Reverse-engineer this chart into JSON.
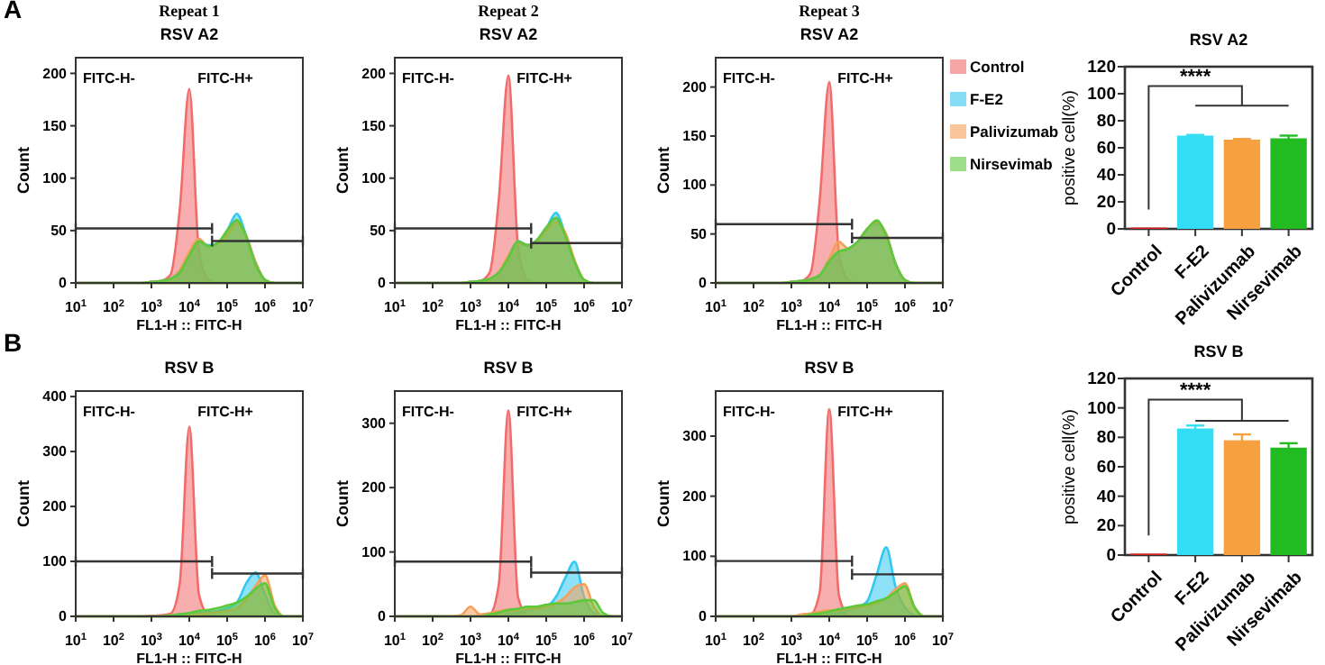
{
  "chart_data": [
    {
      "type": "area",
      "title": "Repeat 1",
      "subtitle": "RSV A2",
      "xlabel": "FL1-H :: FITC-H",
      "ylabel": "Count",
      "annotations": [
        "A",
        "FITC-H-",
        "FITC-H+"
      ],
      "log": "x",
      "xlim": [
        10,
        10000000
      ],
      "xticks": [
        {
          "value": 10,
          "label": "10$^{1}$"
        },
        {
          "value": 100,
          "label": "10$^{2}$"
        },
        {
          "value": 1000,
          "label": "10$^{3}$"
        },
        {
          "value": 10000,
          "label": "10$^{4}$"
        },
        {
          "value": 100000,
          "label": "10$^{5}$"
        },
        {
          "value": 1000000,
          "label": "10$^{6}$"
        },
        {
          "value": 10000000,
          "label": "10$^{7}$"
        }
      ],
      "ylim": [
        0,
        215
      ],
      "yticks": [
        0,
        50,
        100,
        150,
        200
      ],
      "x": [
        10,
        18,
        32,
        56,
        100,
        180,
        320,
        560,
        1000,
        1800,
        3200,
        5600,
        10000,
        18000,
        32000,
        56000,
        100000,
        180000,
        320000,
        560000,
        1000000,
        1800000,
        3200000,
        5600000,
        10000000
      ],
      "series": [
        {
          "color": "#f26b6b",
          "values": [
            0,
            0,
            0,
            0,
            0,
            0,
            0,
            0,
            1,
            2,
            8,
            70,
            185,
            30,
            3,
            0,
            0,
            0,
            0,
            0,
            0,
            0,
            0,
            0,
            0
          ]
        },
        {
          "color": "#33c8f0",
          "values": [
            0,
            0,
            0,
            0,
            0,
            0,
            0,
            0,
            1,
            2,
            4,
            12,
            28,
            40,
            36,
            38,
            50,
            66,
            45,
            20,
            3,
            0,
            0,
            0,
            0
          ]
        },
        {
          "color": "#f5a05a",
          "values": [
            0,
            0,
            0,
            0,
            0,
            0,
            0,
            0,
            1,
            2,
            4,
            12,
            30,
            42,
            35,
            37,
            46,
            57,
            45,
            20,
            3,
            0,
            0,
            0,
            0
          ]
        },
        {
          "color": "#5cc83a",
          "values": [
            0,
            0,
            0,
            0,
            0,
            0,
            0,
            0,
            1,
            2,
            4,
            10,
            26,
            40,
            35,
            38,
            50,
            60,
            44,
            18,
            3,
            0,
            0,
            0,
            0
          ]
        },
        {
          "type": "line",
          "color": "#333333",
          "x": [
            10,
            40000
          ],
          "values": [
            52,
            52
          ]
        },
        {
          "type": "line",
          "color": "#333333",
          "x": [
            40000,
            10000000
          ],
          "values": [
            40,
            40
          ]
        }
      ]
    },
    {
      "type": "area",
      "title": "Repeat 2",
      "subtitle": "RSV A2",
      "xlabel": "FL1-H :: FITC-H",
      "ylabel": "Count",
      "annotations": [
        "FITC-H-",
        "FITC-H+"
      ],
      "log": "x",
      "xlim": [
        10,
        10000000
      ],
      "xticks": [
        {
          "value": 10,
          "label": "10$^{1}$"
        },
        {
          "value": 100,
          "label": "10$^{2}$"
        },
        {
          "value": 1000,
          "label": "10$^{3}$"
        },
        {
          "value": 10000,
          "label": "10$^{4}$"
        },
        {
          "value": 100000,
          "label": "10$^{5}$"
        },
        {
          "value": 1000000,
          "label": "10$^{6}$"
        },
        {
          "value": 10000000,
          "label": "10$^{7}$"
        }
      ],
      "ylim": [
        0,
        215
      ],
      "yticks": [
        0,
        50,
        100,
        150,
        200
      ],
      "x": [
        10,
        18,
        32,
        56,
        100,
        180,
        320,
        560,
        1000,
        1800,
        3200,
        5600,
        10000,
        18000,
        32000,
        56000,
        100000,
        180000,
        320000,
        560000,
        1000000,
        1800000,
        3200000,
        5600000,
        10000000
      ],
      "series": [
        {
          "color": "#f26b6b",
          "values": [
            0,
            0,
            0,
            0,
            0,
            0,
            0,
            0,
            1,
            2,
            10,
            80,
            198,
            35,
            3,
            0,
            0,
            0,
            0,
            0,
            0,
            0,
            0,
            0,
            0
          ]
        },
        {
          "color": "#33c8f0",
          "values": [
            0,
            0,
            0,
            0,
            0,
            0,
            0,
            0,
            1,
            2,
            4,
            10,
            25,
            40,
            36,
            40,
            52,
            67,
            46,
            20,
            3,
            0,
            0,
            0,
            0
          ]
        },
        {
          "color": "#f5a05a",
          "values": [
            0,
            0,
            0,
            0,
            0,
            0,
            0,
            0,
            1,
            2,
            4,
            10,
            26,
            38,
            36,
            40,
            50,
            58,
            48,
            22,
            3,
            0,
            0,
            0,
            0
          ]
        },
        {
          "color": "#5cc83a",
          "values": [
            0,
            0,
            0,
            0,
            0,
            0,
            0,
            0,
            1,
            2,
            4,
            10,
            24,
            40,
            36,
            41,
            53,
            62,
            45,
            20,
            3,
            0,
            0,
            0,
            0
          ]
        },
        {
          "type": "line",
          "color": "#333333",
          "x": [
            10,
            40000
          ],
          "values": [
            52,
            52
          ]
        },
        {
          "type": "line",
          "color": "#333333",
          "x": [
            40000,
            10000000
          ],
          "values": [
            38,
            38
          ]
        }
      ]
    },
    {
      "type": "area",
      "title": "Repeat 3",
      "subtitle": "RSV A2",
      "xlabel": "FL1-H :: FITC-H",
      "ylabel": "Count",
      "annotations": [
        "FITC-H-",
        "FITC-H+"
      ],
      "legend": "right",
      "log": "x",
      "xlim": [
        10,
        10000000
      ],
      "xticks": [
        {
          "value": 10,
          "label": "10$^{1}$"
        },
        {
          "value": 100,
          "label": "10$^{2}$"
        },
        {
          "value": 1000,
          "label": "10$^{3}$"
        },
        {
          "value": 10000,
          "label": "10$^{4}$"
        },
        {
          "value": 100000,
          "label": "10$^{5}$"
        },
        {
          "value": 1000000,
          "label": "10$^{6}$"
        },
        {
          "value": 10000000,
          "label": "10$^{7}$"
        }
      ],
      "ylim": [
        0,
        230
      ],
      "yticks": [
        0,
        50,
        100,
        150,
        200
      ],
      "x": [
        10,
        18,
        32,
        56,
        100,
        180,
        320,
        560,
        1000,
        1800,
        3200,
        5600,
        10000,
        18000,
        32000,
        56000,
        100000,
        180000,
        320000,
        560000,
        1000000,
        1800000,
        3200000,
        5600000,
        10000000
      ],
      "series": [
        {
          "name": "Control",
          "color": "#f26b6b",
          "values": [
            0,
            0,
            0,
            0,
            0,
            0,
            0,
            0,
            1,
            2,
            10,
            85,
            205,
            30,
            3,
            0,
            0,
            0,
            0,
            0,
            0,
            0,
            0,
            0,
            0
          ]
        },
        {
          "name": "F-E2",
          "color": "#33c8f0",
          "values": [
            0,
            0,
            0,
            0,
            0,
            0,
            0,
            0,
            1,
            2,
            4,
            8,
            24,
            32,
            35,
            42,
            55,
            60,
            50,
            20,
            3,
            0,
            0,
            0,
            0
          ]
        },
        {
          "name": "Palivizumab",
          "color": "#f5a05a",
          "values": [
            0,
            0,
            0,
            0,
            0,
            0,
            0,
            0,
            1,
            2,
            4,
            8,
            25,
            42,
            35,
            42,
            55,
            62,
            50,
            20,
            3,
            0,
            0,
            0,
            0
          ]
        },
        {
          "name": "Nirsevimab",
          "color": "#5cc83a",
          "values": [
            0,
            0,
            0,
            0,
            0,
            0,
            0,
            0,
            1,
            2,
            4,
            8,
            22,
            32,
            35,
            42,
            55,
            64,
            48,
            20,
            3,
            0,
            0,
            0,
            0
          ]
        },
        {
          "type": "line",
          "color": "#333333",
          "x": [
            10,
            40000
          ],
          "values": [
            60,
            60
          ]
        },
        {
          "type": "line",
          "color": "#333333",
          "x": [
            40000,
            10000000
          ],
          "values": [
            46,
            46
          ]
        }
      ]
    },
    {
      "type": "bar",
      "title": "RSV A2",
      "ylabel": "positive cell(%)",
      "annotations": [
        "****"
      ],
      "categories": [
        "Control",
        "F-E2",
        "Palivizumab",
        "Nirsevimab"
      ],
      "values": [
        1,
        69,
        66,
        67
      ],
      "errors": [
        null,
        0.5,
        0.5,
        2
      ],
      "colors": [
        "#e02020",
        "#33ddf5",
        "#f7a040",
        "#22bb22"
      ],
      "ylim": [
        0,
        120
      ],
      "yticks": [
        0,
        20,
        40,
        60,
        80,
        100,
        120
      ]
    },
    {
      "type": "area",
      "title": "RSV B",
      "xlabel": "FL1-H :: FITC-H",
      "ylabel": "Count",
      "annotations": [
        "B",
        "FITC-H-",
        "FITC-H+"
      ],
      "log": "x",
      "xlim": [
        10,
        10000000
      ],
      "xticks": [
        {
          "value": 10,
          "label": "10$^{1}$"
        },
        {
          "value": 100,
          "label": "10$^{2}$"
        },
        {
          "value": 1000,
          "label": "10$^{3}$"
        },
        {
          "value": 10000,
          "label": "10$^{4}$"
        },
        {
          "value": 100000,
          "label": "10$^{5}$"
        },
        {
          "value": 1000000,
          "label": "10$^{6}$"
        },
        {
          "value": 10000000,
          "label": "10$^{7}$"
        }
      ],
      "ylim": [
        0,
        410
      ],
      "yticks": [
        0,
        100,
        200,
        300,
        400
      ],
      "x": [
        10,
        18,
        32,
        56,
        100,
        180,
        320,
        560,
        1000,
        1800,
        3200,
        5600,
        10000,
        18000,
        32000,
        56000,
        100000,
        180000,
        320000,
        560000,
        1000000,
        1800000,
        3200000,
        5600000,
        10000000
      ],
      "series": [
        {
          "color": "#f26b6b",
          "values": [
            0,
            0,
            0,
            0,
            0,
            0,
            0,
            0,
            1,
            2,
            5,
            60,
            345,
            40,
            3,
            0,
            0,
            0,
            0,
            0,
            0,
            0,
            0,
            0,
            0
          ]
        },
        {
          "color": "#33c8f0",
          "values": [
            0,
            0,
            0,
            0,
            0,
            0,
            0,
            0,
            0,
            0,
            0,
            0,
            3,
            5,
            8,
            10,
            15,
            25,
            60,
            80,
            40,
            5,
            0,
            0,
            0
          ]
        },
        {
          "color": "#f5a05a",
          "values": [
            0,
            0,
            0,
            0,
            0,
            0,
            0,
            0,
            0,
            0,
            0,
            0,
            2,
            4,
            6,
            8,
            10,
            15,
            30,
            55,
            75,
            20,
            0,
            0,
            0
          ]
        },
        {
          "color": "#5cc83a",
          "values": [
            0,
            0,
            0,
            0,
            0,
            0,
            0,
            0,
            0,
            0,
            2,
            4,
            6,
            10,
            12,
            15,
            20,
            25,
            35,
            50,
            60,
            15,
            0,
            0,
            0
          ]
        },
        {
          "type": "line",
          "color": "#333333",
          "x": [
            10,
            40000
          ],
          "values": [
            100,
            100
          ]
        },
        {
          "type": "line",
          "color": "#333333",
          "x": [
            40000,
            10000000
          ],
          "values": [
            78,
            78
          ]
        }
      ]
    },
    {
      "type": "area",
      "title": "RSV B",
      "xlabel": "FL1-H :: FITC-H",
      "ylabel": "Count",
      "annotations": [
        "FITC-H-",
        "FITC-H+"
      ],
      "log": "x",
      "xlim": [
        10,
        10000000
      ],
      "xticks": [
        {
          "value": 10,
          "label": "10$^{1}$"
        },
        {
          "value": 100,
          "label": "10$^{2}$"
        },
        {
          "value": 1000,
          "label": "10$^{3}$"
        },
        {
          "value": 10000,
          "label": "10$^{4}$"
        },
        {
          "value": 100000,
          "label": "10$^{5}$"
        },
        {
          "value": 1000000,
          "label": "10$^{6}$"
        },
        {
          "value": 10000000,
          "label": "10$^{7}$"
        }
      ],
      "ylim": [
        0,
        350
      ],
      "yticks": [
        0,
        100,
        200,
        300
      ],
      "x": [
        10,
        18,
        32,
        56,
        100,
        180,
        320,
        560,
        1000,
        1800,
        3200,
        5600,
        10000,
        18000,
        32000,
        56000,
        100000,
        180000,
        320000,
        560000,
        1000000,
        1800000,
        3200000,
        5600000,
        10000000
      ],
      "series": [
        {
          "color": "#f26b6b",
          "values": [
            0,
            0,
            0,
            0,
            0,
            0,
            0,
            0,
            0,
            1,
            3,
            50,
            320,
            30,
            2,
            0,
            0,
            0,
            0,
            0,
            0,
            0,
            0,
            0,
            0
          ]
        },
        {
          "color": "#33c8f0",
          "values": [
            0,
            0,
            0,
            0,
            0,
            0,
            0,
            0,
            0,
            0,
            0,
            0,
            3,
            6,
            10,
            12,
            15,
            30,
            60,
            85,
            30,
            5,
            0,
            0,
            0
          ]
        },
        {
          "color": "#f5a05a",
          "values": [
            0,
            0,
            0,
            0,
            0,
            0,
            0,
            2,
            15,
            3,
            5,
            8,
            10,
            10,
            12,
            12,
            15,
            20,
            30,
            45,
            50,
            15,
            0,
            0,
            0
          ]
        },
        {
          "color": "#5cc83a",
          "values": [
            0,
            0,
            0,
            0,
            0,
            0,
            0,
            0,
            0,
            0,
            3,
            6,
            10,
            12,
            15,
            15,
            18,
            20,
            20,
            22,
            25,
            25,
            5,
            0,
            0
          ]
        },
        {
          "type": "line",
          "color": "#333333",
          "x": [
            10,
            40000
          ],
          "values": [
            85,
            85
          ]
        },
        {
          "type": "line",
          "color": "#333333",
          "x": [
            40000,
            10000000
          ],
          "values": [
            68,
            68
          ]
        }
      ]
    },
    {
      "type": "area",
      "title": "RSV B",
      "xlabel": "FL1-H :: FITC-H",
      "ylabel": "Count",
      "annotations": [
        "FITC-H-",
        "FITC-H+"
      ],
      "log": "x",
      "xlim": [
        10,
        10000000
      ],
      "xticks": [
        {
          "value": 10,
          "label": "10$^{1}$"
        },
        {
          "value": 100,
          "label": "10$^{2}$"
        },
        {
          "value": 1000,
          "label": "10$^{3}$"
        },
        {
          "value": 10000,
          "label": "10$^{4}$"
        },
        {
          "value": 100000,
          "label": "10$^{5}$"
        },
        {
          "value": 1000000,
          "label": "10$^{6}$"
        },
        {
          "value": 10000000,
          "label": "10$^{7}$"
        }
      ],
      "ylim": [
        0,
        375
      ],
      "yticks": [
        0,
        100,
        200,
        300
      ],
      "x": [
        10,
        18,
        32,
        56,
        100,
        180,
        320,
        560,
        1000,
        1800,
        3200,
        5600,
        10000,
        18000,
        32000,
        56000,
        100000,
        180000,
        320000,
        560000,
        1000000,
        1800000,
        3200000,
        5600000,
        10000000
      ],
      "series": [
        {
          "color": "#f26b6b",
          "values": [
            0,
            0,
            0,
            0,
            0,
            0,
            0,
            0,
            0,
            1,
            3,
            40,
            345,
            35,
            2,
            0,
            0,
            0,
            0,
            0,
            0,
            0,
            0,
            0,
            0
          ]
        },
        {
          "color": "#33c8f0",
          "values": [
            0,
            0,
            0,
            0,
            0,
            0,
            0,
            0,
            0,
            0,
            0,
            0,
            3,
            5,
            10,
            15,
            25,
            70,
            115,
            50,
            15,
            2,
            0,
            0,
            0
          ]
        },
        {
          "color": "#f5a05a",
          "values": [
            0,
            0,
            0,
            0,
            0,
            0,
            0,
            0,
            0,
            3,
            5,
            8,
            10,
            10,
            12,
            15,
            18,
            22,
            30,
            45,
            55,
            15,
            0,
            0,
            0
          ]
        },
        {
          "color": "#5cc83a",
          "values": [
            0,
            0,
            0,
            0,
            0,
            0,
            0,
            0,
            0,
            0,
            3,
            5,
            8,
            12,
            15,
            18,
            20,
            25,
            30,
            40,
            50,
            15,
            0,
            0,
            0
          ]
        },
        {
          "type": "line",
          "color": "#333333",
          "x": [
            10,
            40000
          ],
          "values": [
            92,
            92
          ]
        },
        {
          "type": "line",
          "color": "#333333",
          "x": [
            40000,
            10000000
          ],
          "values": [
            70,
            70
          ]
        }
      ]
    },
    {
      "type": "bar",
      "title": "RSV B",
      "ylabel": "positive cell(%)",
      "annotations": [
        "****"
      ],
      "categories": [
        "Control",
        "F-E2",
        "Palivizumab",
        "Nirsevimab"
      ],
      "values": [
        1,
        86,
        78,
        73
      ],
      "errors": [
        null,
        2,
        4,
        3
      ],
      "colors": [
        "#e02020",
        "#33ddf5",
        "#f7a040",
        "#22bb22"
      ],
      "ylim": [
        0,
        120
      ],
      "yticks": [
        0,
        20,
        40,
        60,
        80,
        100,
        120
      ]
    }
  ]
}
